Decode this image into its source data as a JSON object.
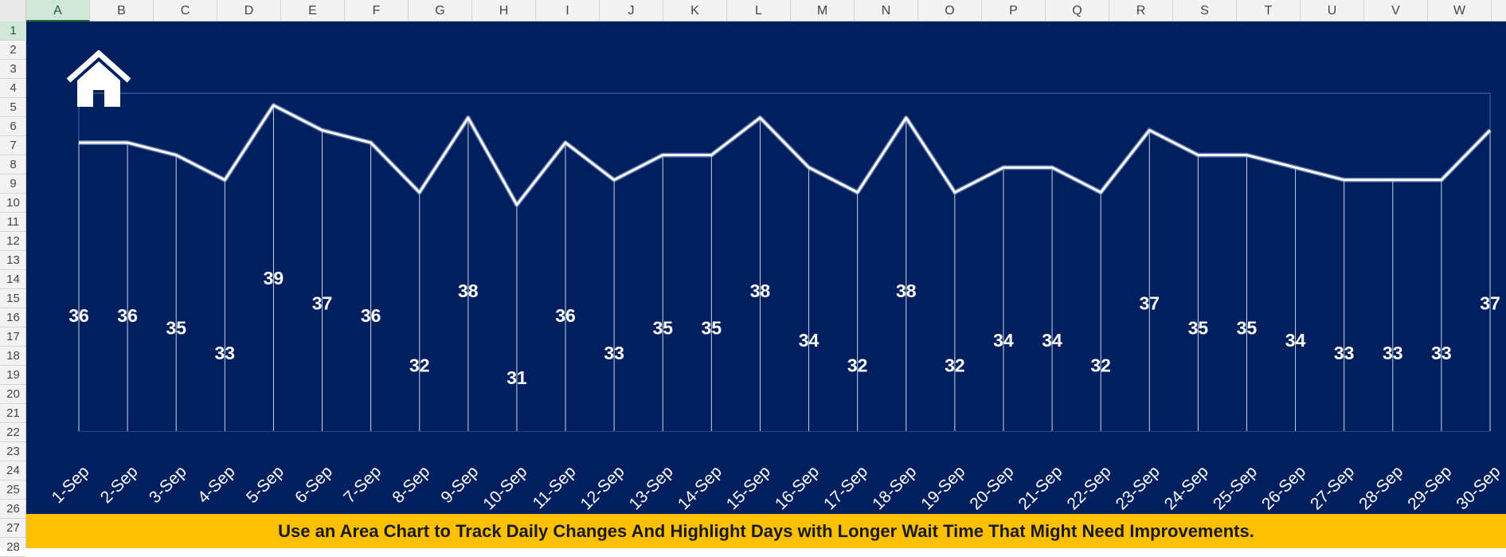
{
  "sheet": {
    "columns": [
      "A",
      "B",
      "C",
      "D",
      "E",
      "F",
      "G",
      "H",
      "I",
      "J",
      "K",
      "L",
      "M",
      "N",
      "O",
      "P",
      "Q",
      "R",
      "S",
      "T",
      "U",
      "V",
      "W"
    ],
    "rows": [
      "1",
      "2",
      "3",
      "4",
      "5",
      "6",
      "7",
      "8",
      "9",
      "10",
      "11",
      "12",
      "13",
      "14",
      "15",
      "16",
      "17",
      "18",
      "19",
      "20",
      "21",
      "22",
      "23",
      "24",
      "25",
      "26",
      "27",
      "28"
    ],
    "selected_column": "A",
    "selected_row": "1"
  },
  "colors": {
    "chart_background": "#001f5f",
    "line": "#ffffff",
    "banner": "#ffc000"
  },
  "icons": {
    "home": "home-icon"
  },
  "banner": {
    "text": "Use an Area Chart to Track Daily Changes And Highlight Days with Longer Wait Time That Might Need Improvements."
  },
  "chart_data": {
    "type": "area",
    "categories": [
      "1-Sep",
      "2-Sep",
      "3-Sep",
      "4-Sep",
      "5-Sep",
      "6-Sep",
      "7-Sep",
      "8-Sep",
      "9-Sep",
      "10-Sep",
      "11-Sep",
      "12-Sep",
      "13-Sep",
      "14-Sep",
      "15-Sep",
      "16-Sep",
      "17-Sep",
      "18-Sep",
      "19-Sep",
      "20-Sep",
      "21-Sep",
      "22-Sep",
      "23-Sep",
      "24-Sep",
      "25-Sep",
      "26-Sep",
      "27-Sep",
      "28-Sep",
      "29-Sep",
      "30-Sep"
    ],
    "values": [
      36,
      36,
      35,
      33,
      39,
      37,
      36,
      32,
      38,
      31,
      36,
      33,
      35,
      35,
      38,
      34,
      32,
      38,
      32,
      34,
      34,
      32,
      37,
      35,
      35,
      34,
      33,
      33,
      33,
      37
    ],
    "labels": [
      "36",
      "36",
      "35",
      "33",
      "39",
      "37",
      "36",
      "32",
      "38",
      "31",
      "36",
      "33",
      "35",
      "35",
      "38",
      "34",
      "32",
      "38",
      "32",
      "34",
      "34",
      "32",
      "37",
      "35",
      "35",
      "34",
      "33",
      "33",
      "33",
      "37"
    ],
    "title": "",
    "xlabel": "",
    "ylabel": "",
    "grid": false,
    "legend": "none"
  }
}
